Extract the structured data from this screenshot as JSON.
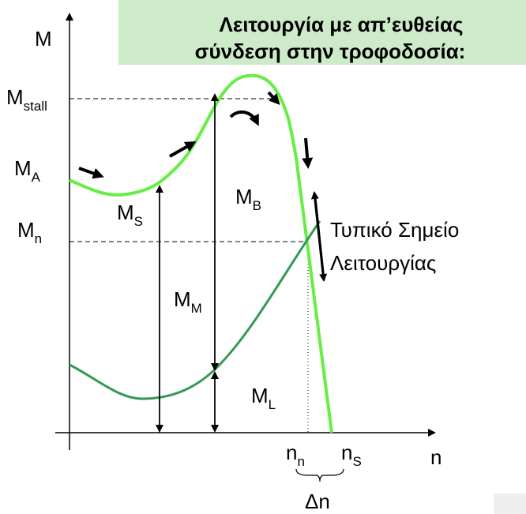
{
  "title": [
    "Λειτουργία με απ’ευθείας",
    "σύνδεση στην τροφοδοσία:"
  ],
  "axes": {
    "y": "M",
    "x": "n"
  },
  "labels": {
    "m_stall": {
      "base": "M",
      "sub": "stall"
    },
    "m_a": {
      "base": "M",
      "sub": "A"
    },
    "m_n": {
      "base": "M",
      "sub": "n"
    },
    "m_s": {
      "base": "M",
      "sub": "S"
    },
    "m_b": {
      "base": "M",
      "sub": "B"
    },
    "m_m": {
      "base": "M",
      "sub": "M"
    },
    "m_l": {
      "base": "M",
      "sub": "L"
    },
    "n_n": {
      "base": "n",
      "sub": "n"
    },
    "n_s": {
      "base": "n",
      "sub": "S"
    }
  },
  "delta": "Δn",
  "annotation": [
    "Τυπικό Σημείο",
    "Λειτουργίας"
  ]
}
